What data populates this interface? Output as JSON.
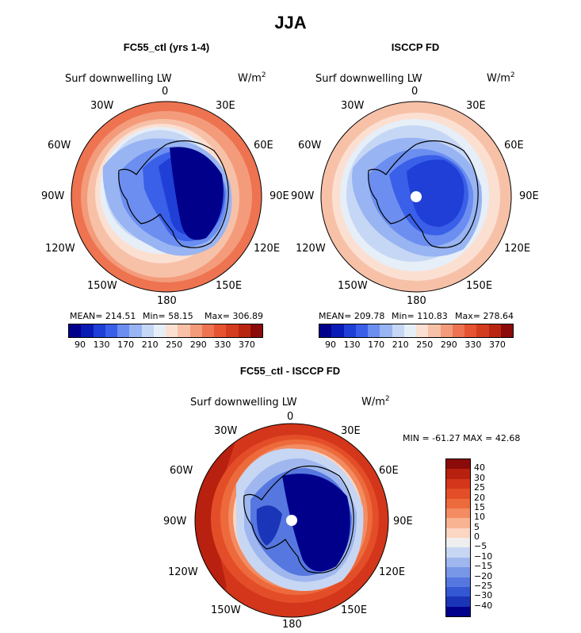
{
  "title": "JJA",
  "panels": [
    {
      "title": "FC55_ctl (yrs 1-4)",
      "variable": "Surf downwelling LW",
      "unit_base": "W/m",
      "unit_exp": "2",
      "stats": {
        "mean": "MEAN= 214.51",
        "min": "Min=   58.15",
        "max": "Max= 306.89"
      },
      "colorbar_ticks": [
        "90",
        "130",
        "170",
        "210",
        "250",
        "290",
        "330",
        "370"
      ]
    },
    {
      "title": "ISCCP FD",
      "variable": "Surf downwelling LW",
      "unit_base": "W/m",
      "unit_exp": "2",
      "stats": {
        "mean": "MEAN= 209.78",
        "min": "Min= 110.83",
        "max": "Max= 278.64"
      },
      "colorbar_ticks": [
        "90",
        "130",
        "170",
        "210",
        "250",
        "290",
        "330",
        "370"
      ]
    },
    {
      "title": "FC55_ctl - ISCCP FD",
      "variable": "Surf downwelling LW",
      "unit_base": "W/m",
      "unit_exp": "2",
      "minmax": "MIN = -61.27  MAX =  42.68",
      "colorbar_ticks": [
        "40",
        "30",
        "25",
        "20",
        "15",
        "10",
        "5",
        "0",
        "−5",
        "−10",
        "−15",
        "−20",
        "−25",
        "−30",
        "−40"
      ]
    }
  ],
  "lon_labels": {
    "n0": "0",
    "e30": "30E",
    "e60": "60E",
    "e90": "90E",
    "e120": "120E",
    "e150": "150E",
    "s180": "180",
    "w150": "150W",
    "w120": "120W",
    "w90": "90W",
    "w60": "60W",
    "w30": "30W"
  },
  "colors": {
    "abs_scale": [
      "#00008b",
      "#0a1ab4",
      "#1f3fd6",
      "#3a5fe8",
      "#6b8ef0",
      "#98b4f2",
      "#c6d7f5",
      "#e6eef8",
      "#fbe0d2",
      "#f7c1a8",
      "#f39b7a",
      "#ee7350",
      "#e65330",
      "#d43c1e",
      "#b82612",
      "#8b0a0a"
    ],
    "diff_scale": [
      "#8b0a0a",
      "#b8200f",
      "#d3361a",
      "#e34e28",
      "#ed6a3c",
      "#f38c62",
      "#f8b393",
      "#fbd6c3",
      "#eeeeee",
      "#c7d6f3",
      "#9fb7ee",
      "#7897e6",
      "#5577df",
      "#3457d4",
      "#1a35b8",
      "#00008b"
    ]
  },
  "shapes": {
    "antarctica_outline": "antarctica-coastline"
  }
}
